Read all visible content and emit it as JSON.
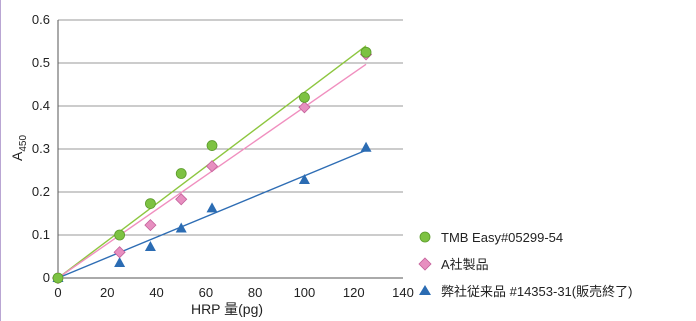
{
  "chart_data": {
    "type": "scatter",
    "xlabel": "HRP 量(pg)",
    "ylabel_main": "A",
    "ylabel_sub": "450",
    "xlim": [
      0,
      140
    ],
    "ylim": [
      0,
      0.6
    ],
    "xticks": [
      "0",
      "20",
      "40",
      "60",
      "80",
      "100",
      "120",
      "140"
    ],
    "yticks": [
      "0",
      "0.1",
      "0.2",
      "0.3",
      "0.4",
      "0.5",
      "0.6"
    ],
    "grid": "horizontal",
    "legend_position": "bottom-right",
    "series": [
      {
        "name": "TMB Easy#05299-54",
        "marker": "circle",
        "color": "#7dc242",
        "line_color": "#8dc63f",
        "x": [
          0,
          25,
          37.5,
          50,
          62.5,
          100,
          125
        ],
        "y": [
          0,
          0.1,
          0.173,
          0.243,
          0.308,
          0.42,
          0.525
        ],
        "trend": [
          [
            0,
            0
          ],
          [
            125,
            0.54
          ]
        ]
      },
      {
        "name": "A社製品",
        "marker": "diamond",
        "color": "#e78fc0",
        "line_color": "#f08fbf",
        "x": [
          0,
          25,
          37.5,
          50,
          62.5,
          100,
          125
        ],
        "y": [
          0,
          0.06,
          0.123,
          0.183,
          0.26,
          0.397,
          0.52
        ],
        "trend": [
          [
            0,
            0
          ],
          [
            125,
            0.497
          ]
        ]
      },
      {
        "name": "弊社従来品 #14353-31(販売終了)",
        "marker": "triangle",
        "color": "#2b6cb3",
        "line_color": "#2e6db4",
        "x": [
          0,
          25,
          37.5,
          50,
          62.5,
          100,
          125
        ],
        "y": [
          0,
          0.035,
          0.072,
          0.115,
          0.162,
          0.228,
          0.303
        ],
        "trend": [
          [
            0,
            0
          ],
          [
            125,
            0.297
          ]
        ]
      }
    ]
  }
}
